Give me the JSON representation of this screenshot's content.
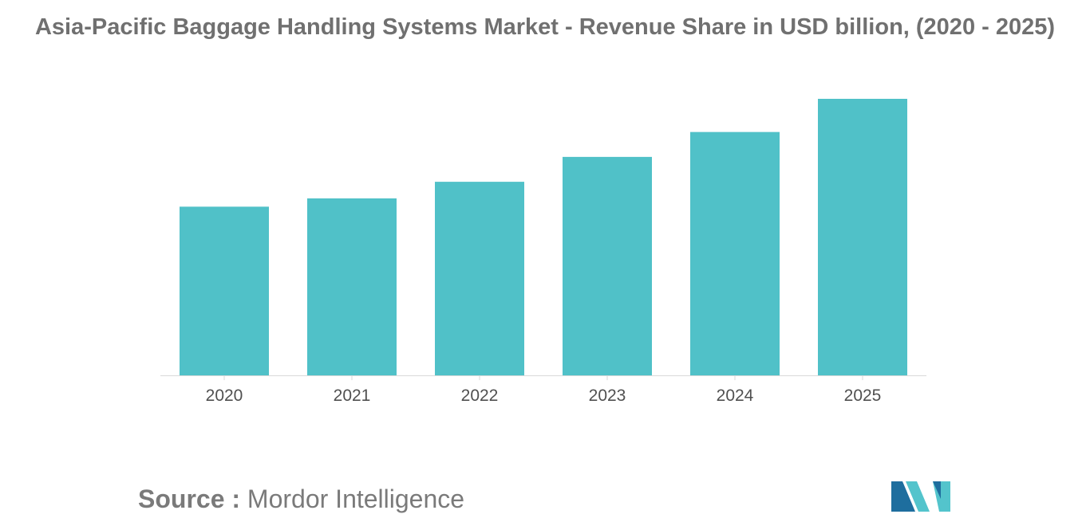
{
  "source": {
    "label": "Source :",
    "value": "Mordor Intelligence"
  },
  "colors": {
    "bar": "#50C1C8",
    "title": "#707070",
    "tick_text": "#505050",
    "axis": "#D9D9D9",
    "logo_dark": "#1E6E9E",
    "logo_light": "#53C4CC"
  },
  "logo": {
    "icon": "mordor-intelligence-logo-icon"
  },
  "chart_data": {
    "type": "bar",
    "title": "Asia-Pacific Baggage Handling Systems Market - Revenue Share in USD billion, (2020 - 2025)",
    "xlabel": "",
    "ylabel": "",
    "categories": [
      "2020",
      "2021",
      "2022",
      "2023",
      "2024",
      "2025"
    ],
    "values": [
      0.61,
      0.64,
      0.7,
      0.79,
      0.88,
      1.0
    ],
    "ylim": [
      0,
      1.0
    ],
    "grid": false,
    "legend": "none",
    "value_note": "No value labels or y-axis in the original; values are relative bar heights normalized to the 2025 bar."
  }
}
